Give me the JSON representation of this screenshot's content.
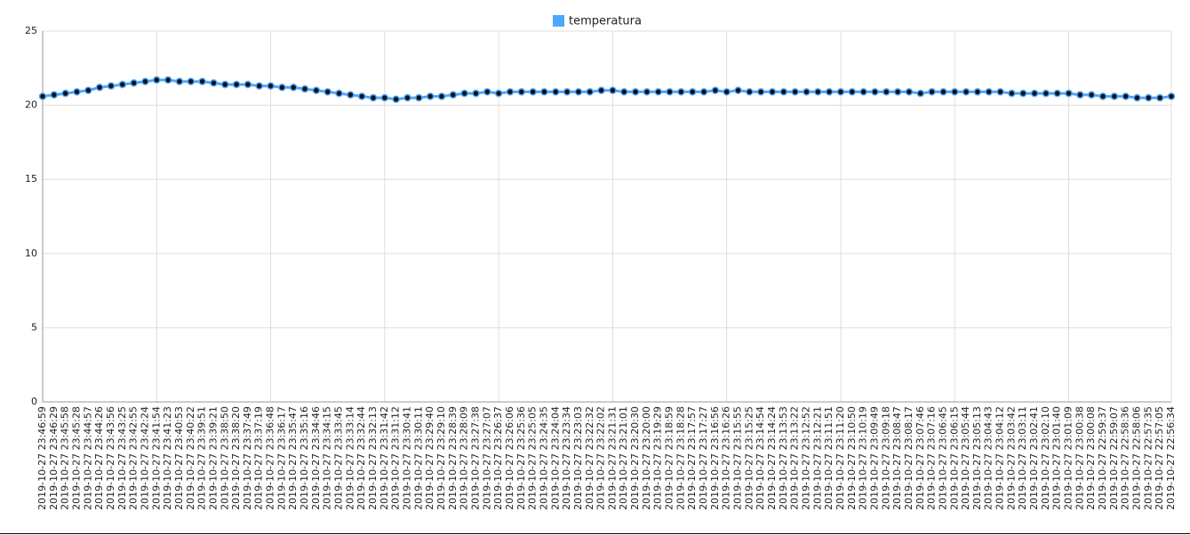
{
  "chart_data": {
    "type": "line",
    "categories": [
      "2019-10-27 23:46:59",
      "2019-10-27 23:46:29",
      "2019-10-27 23:45:58",
      "2019-10-27 23:45:28",
      "2019-10-27 23:44:57",
      "2019-10-27 23:44:26",
      "2019-10-27 23:43:56",
      "2019-10-27 23:43:25",
      "2019-10-27 23:42:55",
      "2019-10-27 23:42:24",
      "2019-10-27 23:41:54",
      "2019-10-27 23:41:23",
      "2019-10-27 23:40:53",
      "2019-10-27 23:40:22",
      "2019-10-27 23:39:51",
      "2019-10-27 23:39:21",
      "2019-10-27 23:38:50",
      "2019-10-27 23:38:20",
      "2019-10-27 23:37:49",
      "2019-10-27 23:37:19",
      "2019-10-27 23:36:48",
      "2019-10-27 23:36:17",
      "2019-10-27 23:35:47",
      "2019-10-27 23:35:16",
      "2019-10-27 23:34:46",
      "2019-10-27 23:34:15",
      "2019-10-27 23:33:45",
      "2019-10-27 23:33:14",
      "2019-10-27 23:32:44",
      "2019-10-27 23:32:13",
      "2019-10-27 23:31:42",
      "2019-10-27 23:31:12",
      "2019-10-27 23:30:41",
      "2019-10-27 23:30:11",
      "2019-10-27 23:29:40",
      "2019-10-27 23:29:10",
      "2019-10-27 23:28:39",
      "2019-10-27 23:28:09",
      "2019-10-27 23:27:38",
      "2019-10-27 23:27:07",
      "2019-10-27 23:26:37",
      "2019-10-27 23:26:06",
      "2019-10-27 23:25:36",
      "2019-10-27 23:25:05",
      "2019-10-27 23:24:35",
      "2019-10-27 23:24:04",
      "2019-10-27 23:23:34",
      "2019-10-27 23:23:03",
      "2019-10-27 23:22:32",
      "2019-10-27 23:22:02",
      "2019-10-27 23:21:31",
      "2019-10-27 23:21:01",
      "2019-10-27 23:20:30",
      "2019-10-27 23:20:00",
      "2019-10-27 23:19:29",
      "2019-10-27 23:18:59",
      "2019-10-27 23:18:28",
      "2019-10-27 23:17:57",
      "2019-10-27 23:17:27",
      "2019-10-27 23:16:56",
      "2019-10-27 23:16:26",
      "2019-10-27 23:15:55",
      "2019-10-27 23:15:25",
      "2019-10-27 23:14:54",
      "2019-10-27 23:14:24",
      "2019-10-27 23:13:53",
      "2019-10-27 23:13:22",
      "2019-10-27 23:12:52",
      "2019-10-27 23:12:21",
      "2019-10-27 23:11:51",
      "2019-10-27 23:11:20",
      "2019-10-27 23:10:50",
      "2019-10-27 23:10:19",
      "2019-10-27 23:09:49",
      "2019-10-27 23:09:18",
      "2019-10-27 23:08:47",
      "2019-10-27 23:08:17",
      "2019-10-27 23:07:46",
      "2019-10-27 23:07:16",
      "2019-10-27 23:06:45",
      "2019-10-27 23:06:15",
      "2019-10-27 23:05:44",
      "2019-10-27 23:05:13",
      "2019-10-27 23:04:43",
      "2019-10-27 23:04:12",
      "2019-10-27 23:03:42",
      "2019-10-27 23:03:11",
      "2019-10-27 23:02:41",
      "2019-10-27 23:02:10",
      "2019-10-27 23:01:40",
      "2019-10-27 23:01:09",
      "2019-10-27 23:00:38",
      "2019-10-27 23:00:08",
      "2019-10-27 22:59:37",
      "2019-10-27 22:59:07",
      "2019-10-27 22:58:36",
      "2019-10-27 22:58:06",
      "2019-10-27 22:57:35",
      "2019-10-27 22:57:05",
      "2019-10-27 22:56:34"
    ],
    "series": [
      {
        "name": "temperatura",
        "color": "#4da6ff",
        "values": [
          20.6,
          20.7,
          20.8,
          20.9,
          21.0,
          21.2,
          21.3,
          21.4,
          21.5,
          21.6,
          21.7,
          21.7,
          21.6,
          21.6,
          21.6,
          21.5,
          21.4,
          21.4,
          21.4,
          21.3,
          21.3,
          21.2,
          21.2,
          21.1,
          21.0,
          20.9,
          20.8,
          20.7,
          20.6,
          20.5,
          20.5,
          20.4,
          20.5,
          20.5,
          20.6,
          20.6,
          20.7,
          20.8,
          20.8,
          20.9,
          20.8,
          20.9,
          20.9,
          20.9,
          20.9,
          20.9,
          20.9,
          20.9,
          20.9,
          21.0,
          21.0,
          20.9,
          20.9,
          20.9,
          20.9,
          20.9,
          20.9,
          20.9,
          20.9,
          21.0,
          20.9,
          21.0,
          20.9,
          20.9,
          20.9,
          20.9,
          20.9,
          20.9,
          20.9,
          20.9,
          20.9,
          20.9,
          20.9,
          20.9,
          20.9,
          20.9,
          20.9,
          20.8,
          20.9,
          20.9,
          20.9,
          20.9,
          20.9,
          20.9,
          20.9,
          20.8,
          20.8,
          20.8,
          20.8,
          20.8,
          20.8,
          20.7,
          20.7,
          20.6,
          20.6,
          20.6,
          20.5,
          20.5,
          20.5,
          20.6
        ]
      }
    ],
    "ylim": [
      0,
      25
    ],
    "yticks": [
      0,
      5,
      10,
      15,
      20,
      25
    ],
    "grid": true,
    "legend": "top"
  }
}
